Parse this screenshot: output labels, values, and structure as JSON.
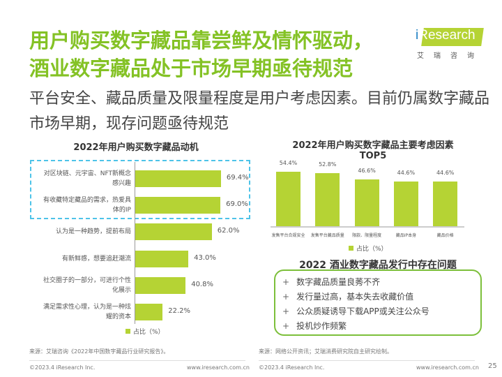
{
  "header": {
    "title_line1": "用户购买数字藏品靠尝鲜及情怀驱动，",
    "title_line2": "酒业数字藏品处于市场早期亟待规范",
    "subtitle": "平台安全、藏品质量及限量程度是用户考虑因素。目前仍属数字藏品市场早期，现存问题亟待规范"
  },
  "logo": {
    "brand": "iResearch",
    "cn": "艾瑞咨询"
  },
  "colors": {
    "accent": "#84c225",
    "bar": "#b5d334",
    "highlight": "#4dc3e8"
  },
  "chart_data": [
    {
      "type": "bar",
      "orientation": "horizontal",
      "title": "2022年用户购买数字藏品动机",
      "legend": "占比（%）",
      "legend_position": "bottom",
      "categories": [
        "对区块链、元宇宙、NFT新概念感兴趣",
        "有收藏特定藏品的需求，热爱具体的IP",
        "认为是一种趋势，提前布局",
        "有新鲜感，想要追赶潮流",
        "社交圈子的一部分，可进行个性化展示",
        "满足需求性心理，认为是一种炫耀的资本"
      ],
      "values": [
        69.4,
        69.0,
        62.0,
        43.0,
        40.8,
        22.2
      ],
      "labels": [
        "69.4%",
        "69.0%",
        "62.0%",
        "43.0%",
        "40.8%",
        "22.2%"
      ],
      "highlighted": [
        0,
        1
      ]
    },
    {
      "type": "bar",
      "orientation": "vertical",
      "title": "2022年用户购买数字藏品主要考虑因素",
      "title2": "TOP5",
      "legend": "占比（%）",
      "legend_position": "bottom",
      "categories": [
        "发售平台合规安全",
        "发售平台藏品质量",
        "限款、限量程度",
        "藏品IP本身",
        "藏品价格"
      ],
      "values": [
        54.4,
        52.8,
        46.6,
        44.6,
        44.6
      ],
      "labels": [
        "54.4%",
        "52.8%",
        "46.6%",
        "44.6%",
        "44.6%"
      ]
    }
  ],
  "issues": {
    "title": "2022 酒业数字藏品发行中存在问题",
    "bullet": "+",
    "items": [
      "数字藏品质量良莠不齐",
      "发行量过高，基本失去收藏价值",
      "公众质疑诱导下载APP或关注公众号",
      "投机炒作频繁"
    ]
  },
  "footer": {
    "source_left": "来源：艾瑞咨询《2022年中国数字藏品行业研究报告》。",
    "source_right": "来源：网络公开资讯；艾瑞消费研究院自主研究绘制。",
    "copyright_left": "©2023.4 iResearch Inc.",
    "url_left": "www.iresearch.com.cn",
    "copyright_right": "©2023.4 iResearch Inc.",
    "url_right": "www.iresearch.com.cn",
    "page": "25"
  }
}
